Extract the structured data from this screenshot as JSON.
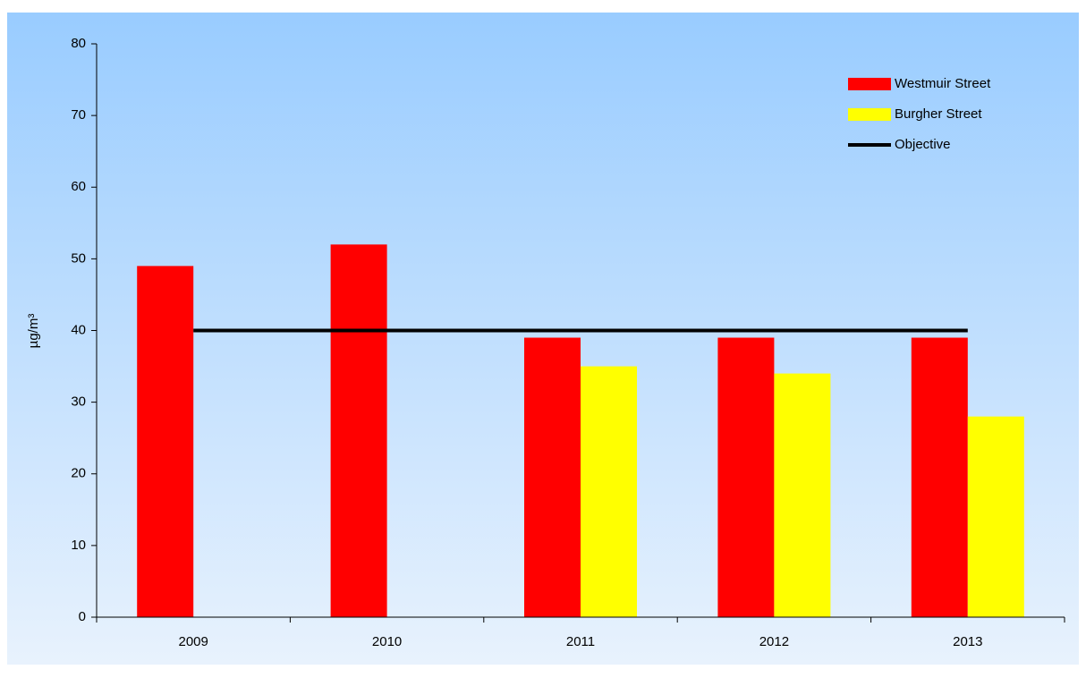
{
  "chart_data": {
    "type": "bar",
    "y_label": "µg/m³",
    "categories": [
      "2009",
      "2010",
      "2011",
      "2012",
      "2013"
    ],
    "series": [
      {
        "name": "Westmuir Street",
        "color": "#ff0000",
        "values": [
          49,
          52,
          39,
          39,
          39
        ]
      },
      {
        "name": "Burgher Street",
        "color": "#ffff00",
        "values": [
          null,
          null,
          35,
          34,
          28
        ]
      },
      {
        "name": "Objective",
        "color": "#000000",
        "type": "line",
        "values": [
          40,
          40,
          40,
          40,
          40
        ]
      }
    ],
    "ylim": [
      0,
      80
    ],
    "yticks": [
      0,
      10,
      20,
      30,
      40,
      50,
      60,
      70,
      80
    ],
    "legend": "top-right"
  }
}
